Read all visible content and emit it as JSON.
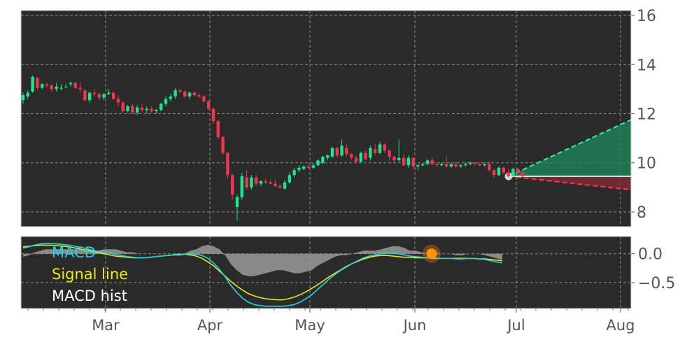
{
  "chart_data": [
    {
      "type": "candlestick",
      "panel": "price",
      "ylim": [
        7.4,
        16.2
      ],
      "yticks": [
        8,
        10,
        12,
        14,
        16
      ],
      "grid": true,
      "background": "#2a2a2a",
      "colors": {
        "up": "#1ee58c",
        "down": "#f0354f",
        "grid": "#8a8a8a",
        "last_marker": "#d9d9d9"
      },
      "candles": [
        {
          "d": "Feb 07",
          "o": 12.55,
          "h": 12.85,
          "l": 12.4,
          "c": 12.75
        },
        {
          "d": "Feb 08",
          "o": 12.7,
          "h": 12.95,
          "l": 12.6,
          "c": 12.85
        },
        {
          "d": "Feb 09",
          "o": 12.9,
          "h": 13.55,
          "l": 12.85,
          "c": 13.5
        },
        {
          "d": "Feb 10",
          "o": 13.45,
          "h": 13.5,
          "l": 12.95,
          "c": 13.05
        },
        {
          "d": "Feb 13",
          "o": 13.05,
          "h": 13.25,
          "l": 13.0,
          "c": 13.2
        },
        {
          "d": "Feb 14",
          "o": 13.2,
          "h": 13.25,
          "l": 13.05,
          "c": 13.15
        },
        {
          "d": "Feb 15",
          "o": 13.15,
          "h": 13.2,
          "l": 12.9,
          "c": 13.0
        },
        {
          "d": "Feb 16",
          "o": 13.0,
          "h": 13.25,
          "l": 12.9,
          "c": 13.1
        },
        {
          "d": "Feb 17",
          "o": 13.05,
          "h": 13.2,
          "l": 12.95,
          "c": 13.05
        },
        {
          "d": "Feb 21",
          "o": 13.1,
          "h": 13.2,
          "l": 13.05,
          "c": 13.1
        },
        {
          "d": "Feb 22",
          "o": 13.2,
          "h": 13.3,
          "l": 13.1,
          "c": 13.25
        },
        {
          "d": "Feb 23",
          "o": 13.25,
          "h": 13.3,
          "l": 13.0,
          "c": 13.05
        },
        {
          "d": "Feb 24",
          "o": 13.05,
          "h": 13.3,
          "l": 12.85,
          "c": 13.0
        },
        {
          "d": "Feb 27",
          "o": 12.95,
          "h": 13.0,
          "l": 12.5,
          "c": 12.55
        },
        {
          "d": "Feb 28",
          "o": 12.55,
          "h": 12.9,
          "l": 12.45,
          "c": 12.85
        },
        {
          "d": "Mar 01",
          "o": 12.85,
          "h": 13.0,
          "l": 12.7,
          "c": 12.8
        },
        {
          "d": "Mar 02",
          "o": 12.8,
          "h": 12.85,
          "l": 12.55,
          "c": 12.65
        },
        {
          "d": "Mar 03",
          "o": 12.65,
          "h": 12.85,
          "l": 12.55,
          "c": 12.8
        },
        {
          "d": "Mar 06",
          "o": 12.8,
          "h": 13.0,
          "l": 12.75,
          "c": 12.85
        },
        {
          "d": "Mar 07",
          "o": 12.85,
          "h": 12.9,
          "l": 12.55,
          "c": 12.6
        },
        {
          "d": "Mar 08",
          "o": 12.6,
          "h": 12.75,
          "l": 12.3,
          "c": 12.45
        },
        {
          "d": "Mar 09",
          "o": 12.45,
          "h": 12.5,
          "l": 12.05,
          "c": 12.1
        },
        {
          "d": "Mar 10",
          "o": 12.1,
          "h": 12.35,
          "l": 12.05,
          "c": 12.3
        },
        {
          "d": "Mar 13",
          "o": 12.3,
          "h": 12.4,
          "l": 12.0,
          "c": 12.05
        },
        {
          "d": "Mar 14",
          "o": 12.05,
          "h": 12.35,
          "l": 11.95,
          "c": 12.25
        },
        {
          "d": "Mar 15",
          "o": 12.25,
          "h": 12.4,
          "l": 12.05,
          "c": 12.15
        },
        {
          "d": "Mar 16",
          "o": 12.15,
          "h": 12.3,
          "l": 12.0,
          "c": 12.2
        },
        {
          "d": "Mar 17",
          "o": 12.2,
          "h": 12.3,
          "l": 12.05,
          "c": 12.1
        },
        {
          "d": "Mar 20",
          "o": 12.1,
          "h": 12.2,
          "l": 12.0,
          "c": 12.15
        },
        {
          "d": "Mar 21",
          "o": 12.15,
          "h": 12.45,
          "l": 12.1,
          "c": 12.4
        },
        {
          "d": "Mar 22",
          "o": 12.4,
          "h": 12.7,
          "l": 12.3,
          "c": 12.6
        },
        {
          "d": "Mar 23",
          "o": 12.6,
          "h": 12.8,
          "l": 12.5,
          "c": 12.7
        },
        {
          "d": "Mar 24",
          "o": 12.7,
          "h": 13.05,
          "l": 12.6,
          "c": 12.95
        },
        {
          "d": "Mar 27",
          "o": 12.95,
          "h": 13.0,
          "l": 12.85,
          "c": 12.9
        },
        {
          "d": "Mar 28",
          "o": 12.9,
          "h": 12.95,
          "l": 12.65,
          "c": 12.7
        },
        {
          "d": "Mar 29",
          "o": 12.7,
          "h": 12.9,
          "l": 12.6,
          "c": 12.85
        },
        {
          "d": "Mar 30",
          "o": 12.85,
          "h": 12.9,
          "l": 12.7,
          "c": 12.75
        },
        {
          "d": "Mar 31",
          "o": 12.75,
          "h": 12.85,
          "l": 12.65,
          "c": 12.7
        },
        {
          "d": "Apr 03",
          "o": 12.7,
          "h": 12.75,
          "l": 12.45,
          "c": 12.5
        },
        {
          "d": "Apr 04",
          "o": 12.5,
          "h": 12.55,
          "l": 12.15,
          "c": 12.2
        },
        {
          "d": "Apr 05",
          "o": 12.2,
          "h": 12.25,
          "l": 11.6,
          "c": 11.7
        },
        {
          "d": "Apr 06",
          "o": 11.7,
          "h": 11.75,
          "l": 10.95,
          "c": 11.05
        },
        {
          "d": "Apr 07",
          "o": 11.05,
          "h": 11.1,
          "l": 10.3,
          "c": 10.4
        },
        {
          "d": "Apr 10",
          "o": 10.4,
          "h": 10.45,
          "l": 9.35,
          "c": 9.5
        },
        {
          "d": "Apr 11",
          "o": 9.5,
          "h": 9.55,
          "l": 8.5,
          "c": 8.7
        },
        {
          "d": "Apr 12",
          "o": 8.2,
          "h": 8.7,
          "l": 7.65,
          "c": 8.6
        },
        {
          "d": "Apr 13",
          "o": 8.6,
          "h": 9.6,
          "l": 8.5,
          "c": 9.45
        },
        {
          "d": "Apr 14",
          "o": 9.4,
          "h": 9.7,
          "l": 8.9,
          "c": 9.0
        },
        {
          "d": "Apr 17",
          "o": 9.0,
          "h": 9.5,
          "l": 8.9,
          "c": 9.4
        },
        {
          "d": "Apr 18",
          "o": 9.4,
          "h": 9.5,
          "l": 9.05,
          "c": 9.15
        },
        {
          "d": "Apr 19",
          "o": 9.15,
          "h": 9.3,
          "l": 9.05,
          "c": 9.25
        },
        {
          "d": "Apr 20",
          "o": 9.25,
          "h": 9.35,
          "l": 9.15,
          "c": 9.2
        },
        {
          "d": "Apr 21",
          "o": 9.2,
          "h": 9.3,
          "l": 9.1,
          "c": 9.15
        },
        {
          "d": "Apr 24",
          "o": 9.15,
          "h": 9.3,
          "l": 9.0,
          "c": 9.05
        },
        {
          "d": "Apr 25",
          "o": 9.05,
          "h": 9.15,
          "l": 8.95,
          "c": 9.0
        },
        {
          "d": "Apr 26",
          "o": 8.95,
          "h": 9.3,
          "l": 8.9,
          "c": 9.2
        },
        {
          "d": "Apr 27",
          "o": 9.2,
          "h": 9.6,
          "l": 9.15,
          "c": 9.5
        },
        {
          "d": "Apr 28",
          "o": 9.5,
          "h": 9.8,
          "l": 9.4,
          "c": 9.7
        },
        {
          "d": "May 01",
          "o": 9.7,
          "h": 9.9,
          "l": 9.6,
          "c": 9.8
        },
        {
          "d": "May 02",
          "o": 9.75,
          "h": 9.9,
          "l": 9.7,
          "c": 9.85
        },
        {
          "d": "May 03",
          "o": 9.85,
          "h": 9.95,
          "l": 9.75,
          "c": 9.8
        },
        {
          "d": "May 04",
          "o": 9.8,
          "h": 10.0,
          "l": 9.75,
          "c": 9.9
        },
        {
          "d": "May 05",
          "o": 9.9,
          "h": 10.15,
          "l": 9.85,
          "c": 10.1
        },
        {
          "d": "May 08",
          "o": 10.0,
          "h": 10.3,
          "l": 9.95,
          "c": 10.25
        },
        {
          "d": "May 09",
          "o": 10.2,
          "h": 10.35,
          "l": 10.1,
          "c": 10.3
        },
        {
          "d": "May 10",
          "o": 10.25,
          "h": 10.65,
          "l": 10.2,
          "c": 10.6
        },
        {
          "d": "May 11",
          "o": 10.6,
          "h": 10.65,
          "l": 10.2,
          "c": 10.3
        },
        {
          "d": "May 12",
          "o": 10.3,
          "h": 10.95,
          "l": 10.25,
          "c": 10.7
        },
        {
          "d": "May 15",
          "o": 10.6,
          "h": 10.75,
          "l": 10.25,
          "c": 10.35
        },
        {
          "d": "May 16",
          "o": 10.35,
          "h": 10.4,
          "l": 10.1,
          "c": 10.2
        },
        {
          "d": "May 17",
          "o": 10.2,
          "h": 10.3,
          "l": 10.0,
          "c": 10.05
        },
        {
          "d": "May 18",
          "o": 10.05,
          "h": 10.45,
          "l": 10.0,
          "c": 10.4
        },
        {
          "d": "May 19",
          "o": 10.4,
          "h": 10.5,
          "l": 10.1,
          "c": 10.15
        },
        {
          "d": "May 22",
          "o": 10.2,
          "h": 10.7,
          "l": 10.1,
          "c": 10.6
        },
        {
          "d": "May 23",
          "o": 10.55,
          "h": 10.8,
          "l": 10.3,
          "c": 10.4
        },
        {
          "d": "May 24",
          "o": 10.4,
          "h": 10.85,
          "l": 10.35,
          "c": 10.75
        },
        {
          "d": "May 25",
          "o": 10.75,
          "h": 10.8,
          "l": 10.4,
          "c": 10.5
        },
        {
          "d": "May 26",
          "o": 10.5,
          "h": 10.55,
          "l": 10.1,
          "c": 10.25
        },
        {
          "d": "May 30",
          "o": 10.25,
          "h": 10.3,
          "l": 10.0,
          "c": 10.1
        },
        {
          "d": "May 31",
          "o": 10.1,
          "h": 10.95,
          "l": 10.05,
          "c": 10.2
        },
        {
          "d": "Jun 01",
          "o": 10.2,
          "h": 10.35,
          "l": 9.85,
          "c": 9.9
        },
        {
          "d": "Jun 02",
          "o": 9.9,
          "h": 10.3,
          "l": 9.8,
          "c": 10.2
        },
        {
          "d": "Jun 05",
          "o": 10.2,
          "h": 10.25,
          "l": 9.75,
          "c": 9.85
        },
        {
          "d": "Jun 06",
          "o": 9.85,
          "h": 9.95,
          "l": 9.7,
          "c": 9.9
        },
        {
          "d": "Jun 07",
          "o": 9.9,
          "h": 10.0,
          "l": 9.85,
          "c": 9.95
        },
        {
          "d": "Jun 08",
          "o": 9.95,
          "h": 10.15,
          "l": 9.9,
          "c": 10.1
        },
        {
          "d": "Jun 09",
          "o": 10.1,
          "h": 10.2,
          "l": 9.9,
          "c": 9.95
        },
        {
          "d": "Jun 12",
          "o": 9.95,
          "h": 10.0,
          "l": 9.85,
          "c": 9.9
        },
        {
          "d": "Jun 13",
          "o": 9.9,
          "h": 10.0,
          "l": 9.85,
          "c": 9.95
        },
        {
          "d": "Jun 14",
          "o": 9.95,
          "h": 10.25,
          "l": 9.8,
          "c": 9.85
        },
        {
          "d": "Jun 15",
          "o": 9.85,
          "h": 10.0,
          "l": 9.8,
          "c": 9.95
        },
        {
          "d": "Jun 16",
          "o": 9.95,
          "h": 10.05,
          "l": 9.8,
          "c": 9.85
        },
        {
          "d": "Jun 20",
          "o": 9.85,
          "h": 9.95,
          "l": 9.8,
          "c": 9.9
        },
        {
          "d": "Jun 21",
          "o": 9.9,
          "h": 10.0,
          "l": 9.85,
          "c": 9.95
        },
        {
          "d": "Jun 22",
          "o": 9.95,
          "h": 10.05,
          "l": 9.9,
          "c": 10.0
        },
        {
          "d": "Jun 23",
          "o": 10.0,
          "h": 10.05,
          "l": 9.9,
          "c": 9.95
        },
        {
          "d": "Jun 26",
          "o": 9.95,
          "h": 10.0,
          "l": 9.85,
          "c": 9.9
        },
        {
          "d": "Jun 27",
          "o": 9.9,
          "h": 10.0,
          "l": 9.85,
          "c": 9.95
        },
        {
          "d": "Jun 28",
          "o": 9.95,
          "h": 10.05,
          "l": 9.65,
          "c": 9.7
        },
        {
          "d": "Jun 29",
          "o": 9.7,
          "h": 9.75,
          "l": 9.4,
          "c": 9.5
        },
        {
          "d": "Jun 30",
          "o": 9.5,
          "h": 9.85,
          "l": 9.45,
          "c": 9.8
        },
        {
          "d": "Jul 03",
          "o": 9.8,
          "h": 9.85,
          "l": 9.55,
          "c": 9.6
        },
        {
          "d": "Jul 05",
          "o": 9.6,
          "h": 9.75,
          "l": 9.4,
          "c": 9.45
        },
        {
          "d": "Jul 06",
          "o": 9.45,
          "h": 9.8,
          "l": 9.4,
          "c": 9.75
        },
        {
          "d": "Jul 07",
          "o": 9.75,
          "h": 9.8,
          "l": 9.55,
          "c": 9.6
        },
        {
          "d": "Jul 10",
          "o": 9.6,
          "h": 9.75,
          "l": 9.4,
          "c": 9.45
        }
      ],
      "last_close": 9.45,
      "projection": {
        "upper_end": 11.75,
        "lower_end": 8.9,
        "baseline": 9.45
      }
    },
    {
      "type": "line",
      "panel": "macd",
      "ylim": [
        -0.95,
        0.3
      ],
      "yticks": [
        0.0,
        -0.5
      ],
      "ytick_labels": [
        "0.0",
        "−0.5"
      ],
      "grid": true,
      "legend": [
        {
          "label": "MACD",
          "color": "#22d3e8"
        },
        {
          "label": "Signal line",
          "color": "#e8e81c"
        },
        {
          "label": "MACD hist",
          "color": "#ffffff"
        }
      ],
      "series": [
        {
          "name": "MACD",
          "color": "#22d3e8",
          "values": [
            0.1,
            0.12,
            0.15,
            0.17,
            0.18,
            0.18,
            0.17,
            0.16,
            0.15,
            0.13,
            0.11,
            0.09,
            0.06,
            0.04,
            0.03,
            0.01,
            -0.01,
            -0.03,
            -0.05,
            -0.06,
            -0.07,
            -0.07,
            -0.06,
            -0.05,
            -0.04,
            -0.03,
            -0.02,
            -0.02,
            -0.01,
            0.0,
            -0.01,
            -0.03,
            -0.08,
            -0.16,
            -0.27,
            -0.4,
            -0.55,
            -0.67,
            -0.77,
            -0.84,
            -0.88,
            -0.9,
            -0.91,
            -0.91,
            -0.91,
            -0.91,
            -0.9,
            -0.88,
            -0.84,
            -0.78,
            -0.71,
            -0.62,
            -0.53,
            -0.44,
            -0.36,
            -0.29,
            -0.23,
            -0.17,
            -0.12,
            -0.07,
            -0.04,
            -0.02,
            0.0,
            0.01,
            0.01,
            0.0,
            -0.02,
            -0.04,
            -0.05,
            -0.06,
            -0.07,
            -0.07,
            -0.08,
            -0.08,
            -0.08,
            -0.09,
            -0.09,
            -0.08,
            -0.08,
            -0.09,
            -0.1,
            -0.12,
            -0.14,
            -0.16
          ]
        },
        {
          "name": "Signal line",
          "color": "#e8e81c",
          "values": [
            0.12,
            0.13,
            0.14,
            0.15,
            0.15,
            0.15,
            0.14,
            0.13,
            0.12,
            0.1,
            0.08,
            0.06,
            0.04,
            0.02,
            0.0,
            -0.02,
            -0.04,
            -0.05,
            -0.06,
            -0.07,
            -0.07,
            -0.07,
            -0.06,
            -0.05,
            -0.04,
            -0.03,
            -0.02,
            -0.01,
            -0.01,
            -0.02,
            -0.04,
            -0.08,
            -0.14,
            -0.21,
            -0.3,
            -0.39,
            -0.48,
            -0.56,
            -0.63,
            -0.69,
            -0.73,
            -0.76,
            -0.78,
            -0.79,
            -0.8,
            -0.8,
            -0.78,
            -0.75,
            -0.71,
            -0.66,
            -0.6,
            -0.54,
            -0.47,
            -0.4,
            -0.34,
            -0.28,
            -0.22,
            -0.17,
            -0.13,
            -0.09,
            -0.06,
            -0.04,
            -0.03,
            -0.03,
            -0.04,
            -0.05,
            -0.06,
            -0.06,
            -0.07,
            -0.07,
            -0.07,
            -0.08,
            -0.08,
            -0.08,
            -0.08,
            -0.08,
            -0.08,
            -0.08,
            -0.08,
            -0.09,
            -0.09,
            -0.1,
            -0.11,
            -0.12
          ]
        }
      ],
      "histogram_range": [
        -0.3,
        0.27
      ],
      "marker": {
        "index": 68,
        "value": 0.0,
        "color": "#ff9500"
      }
    }
  ],
  "x_axis": {
    "tick_labels": [
      "Mar",
      "Apr",
      "May",
      "Jun",
      "Jul",
      "Aug"
    ]
  }
}
